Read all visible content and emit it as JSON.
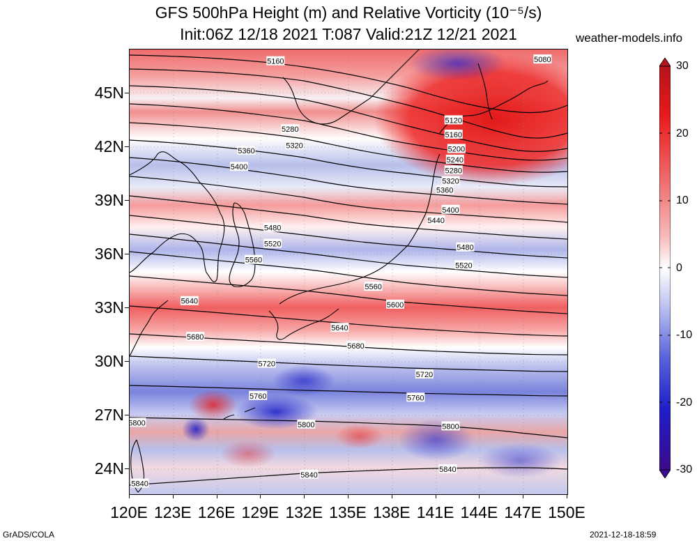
{
  "title_line1": "GFS 500hPa Height (m) and Relative Vorticity (10⁻⁵/s)",
  "title_line2": "Init:06Z 12/18 2021 T:087 Valid:21Z 12/21 2021",
  "site": "weather-models.info",
  "footer_left": "GrADS/COLA",
  "footer_right": "2021-12-18-18:59",
  "lat_labels": [
    "45N",
    "42N",
    "39N",
    "36N",
    "33N",
    "30N",
    "27N",
    "24N"
  ],
  "lon_labels": [
    "120E",
    "123E",
    "126E",
    "129E",
    "132E",
    "135E",
    "138E",
    "141E",
    "144E",
    "147E",
    "150E"
  ],
  "colorbar": {
    "labels": [
      "30",
      "20",
      "10",
      "0",
      "-10",
      "-20",
      "-30"
    ],
    "colors": [
      "#b4151b",
      "#e8191b",
      "#f06b6b",
      "#f7b9b9",
      "#ffffff",
      "#b9bff0",
      "#5a64dc",
      "#1e1ec8",
      "#3c0a8c"
    ]
  },
  "contour_labels": [
    "5080",
    "5120",
    "5160",
    "5200",
    "5240",
    "5280",
    "5320",
    "5360",
    "5400",
    "5440",
    "5480",
    "5520",
    "5560",
    "5600",
    "5640",
    "5680",
    "5720",
    "5760",
    "5800",
    "5840"
  ],
  "contour_label_instances": [
    {
      "text": "5160",
      "lon": 130.0,
      "lat": 46.8
    },
    {
      "text": "5080",
      "lon": 148.3,
      "lat": 46.9
    },
    {
      "text": "5120",
      "lon": 142.2,
      "lat": 43.5
    },
    {
      "text": "5160",
      "lon": 142.2,
      "lat": 42.7
    },
    {
      "text": "5200",
      "lon": 142.4,
      "lat": 41.9
    },
    {
      "text": "5240",
      "lon": 142.3,
      "lat": 41.3
    },
    {
      "text": "5280",
      "lon": 142.2,
      "lat": 40.7
    },
    {
      "text": "5320",
      "lon": 142.0,
      "lat": 40.1
    },
    {
      "text": "5360",
      "lon": 141.6,
      "lat": 39.6
    },
    {
      "text": "5400",
      "lon": 142.0,
      "lat": 38.5
    },
    {
      "text": "5440",
      "lon": 141.0,
      "lat": 37.9
    },
    {
      "text": "5480",
      "lon": 143.0,
      "lat": 36.4
    },
    {
      "text": "5520",
      "lon": 142.9,
      "lat": 35.4
    },
    {
      "text": "5280",
      "lon": 131.0,
      "lat": 43.0
    },
    {
      "text": "5320",
      "lon": 131.3,
      "lat": 42.1
    },
    {
      "text": "5360",
      "lon": 128.0,
      "lat": 41.8
    },
    {
      "text": "5400",
      "lon": 127.5,
      "lat": 40.9
    },
    {
      "text": "5480",
      "lon": 129.8,
      "lat": 37.5
    },
    {
      "text": "5520",
      "lon": 129.8,
      "lat": 36.6
    },
    {
      "text": "5560",
      "lon": 128.5,
      "lat": 35.7
    },
    {
      "text": "5560",
      "lon": 136.7,
      "lat": 34.2
    },
    {
      "text": "5600",
      "lon": 138.2,
      "lat": 33.2
    },
    {
      "text": "5640",
      "lon": 124.1,
      "lat": 33.4
    },
    {
      "text": "5640",
      "lon": 134.4,
      "lat": 31.9
    },
    {
      "text": "5680",
      "lon": 124.5,
      "lat": 31.4
    },
    {
      "text": "5680",
      "lon": 135.5,
      "lat": 30.9
    },
    {
      "text": "5720",
      "lon": 129.4,
      "lat": 29.9
    },
    {
      "text": "5720",
      "lon": 140.2,
      "lat": 29.3
    },
    {
      "text": "5760",
      "lon": 128.8,
      "lat": 28.1
    },
    {
      "text": "5760",
      "lon": 139.6,
      "lat": 28.0
    },
    {
      "text": "5800",
      "lon": 120.5,
      "lat": 26.6
    },
    {
      "text": "5800",
      "lon": 132.1,
      "lat": 26.5
    },
    {
      "text": "5800",
      "lon": 142.0,
      "lat": 26.4
    },
    {
      "text": "5840",
      "lon": 120.7,
      "lat": 23.2
    },
    {
      "text": "5840",
      "lon": 132.3,
      "lat": 23.7
    },
    {
      "text": "5840",
      "lon": 141.8,
      "lat": 24.0
    }
  ]
}
